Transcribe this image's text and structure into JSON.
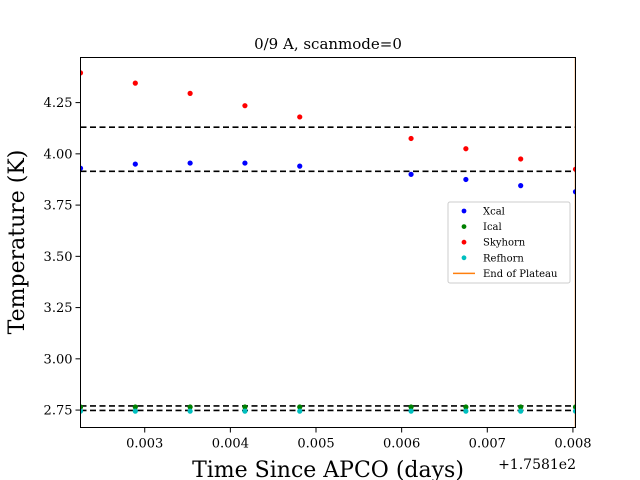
{
  "chart_data": {
    "type": "scatter",
    "title": "0/9 A, scanmode=0",
    "xlabel": "Time Since APCO (days)",
    "ylabel": "Temperature (K)",
    "x_offset_label": "+1.7581e2",
    "xlim": [
      0.00225,
      0.00803
    ],
    "ylim": [
      2.665,
      4.47
    ],
    "x_ticks": [
      0.003,
      0.004,
      0.005,
      0.006,
      0.007,
      0.008
    ],
    "x_tick_labels": [
      "0.003",
      "0.004",
      "0.005",
      "0.006",
      "0.007",
      "0.008"
    ],
    "y_ticks": [
      2.75,
      3.0,
      3.25,
      3.5,
      3.75,
      4.0,
      4.25
    ],
    "y_tick_labels": [
      "2.75",
      "3.00",
      "3.25",
      "3.50",
      "3.75",
      "4.00",
      "4.25"
    ],
    "legend_position": "center-right",
    "grid": false,
    "series": [
      {
        "name": "Xcal",
        "color": "#0000ff",
        "x": [
          0.00225,
          0.00289,
          0.00353,
          0.00417,
          0.00481,
          0.00611,
          0.00675,
          0.00739,
          0.00803
        ],
        "y": [
          3.93,
          3.95,
          3.955,
          3.955,
          3.94,
          3.9,
          3.875,
          3.845,
          3.815
        ]
      },
      {
        "name": "Ical",
        "color": "#008000",
        "x": [
          0.00225,
          0.00289,
          0.00353,
          0.00417,
          0.00481,
          0.00611,
          0.00675,
          0.00739,
          0.00803
        ],
        "y": [
          2.765,
          2.765,
          2.765,
          2.765,
          2.765,
          2.765,
          2.765,
          2.765,
          2.765
        ]
      },
      {
        "name": "Skyhorn",
        "color": "#ff0000",
        "x": [
          0.00225,
          0.00289,
          0.00353,
          0.00417,
          0.00481,
          0.00611,
          0.00675,
          0.00739,
          0.00803
        ],
        "y": [
          4.395,
          4.345,
          4.295,
          4.235,
          4.18,
          4.075,
          4.025,
          3.975,
          3.925
        ]
      },
      {
        "name": "Refhorn",
        "color": "#00bfbf",
        "x": [
          0.00225,
          0.00289,
          0.00353,
          0.00417,
          0.00481,
          0.00611,
          0.00675,
          0.00739,
          0.00803
        ],
        "y": [
          2.745,
          2.745,
          2.745,
          2.745,
          2.745,
          2.745,
          2.745,
          2.745,
          2.745
        ]
      }
    ],
    "end_of_plateau": {
      "name": "End of Plateau",
      "x": 0.00803,
      "color": "#ff7f0e"
    },
    "dashed_hlines": [
      4.13,
      3.915,
      2.77,
      2.748
    ]
  }
}
